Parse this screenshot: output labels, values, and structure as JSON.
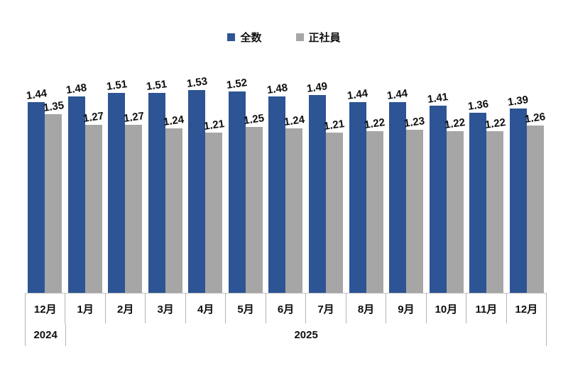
{
  "legend": {
    "items": [
      {
        "label": "全数",
        "color": "#2d5494"
      },
      {
        "label": "正社員",
        "color": "#a6a6a6"
      }
    ]
  },
  "chart_data": {
    "type": "bar",
    "title": "",
    "categories": [
      "12月",
      "1月",
      "2月",
      "3月",
      "4月",
      "5月",
      "6月",
      "7月",
      "8月",
      "9月",
      "10月",
      "11月",
      "12月"
    ],
    "series": [
      {
        "name": "全数",
        "color": "#2d5494",
        "values": [
          1.44,
          1.48,
          1.51,
          1.51,
          1.53,
          1.52,
          1.48,
          1.49,
          1.44,
          1.44,
          1.41,
          1.36,
          1.39
        ]
      },
      {
        "name": "正社員",
        "color": "#a6a6a6",
        "values": [
          1.35,
          1.27,
          1.27,
          1.24,
          1.21,
          1.25,
          1.24,
          1.21,
          1.22,
          1.23,
          1.22,
          1.22,
          1.26
        ]
      }
    ],
    "x_axis_years": [
      {
        "label": "2024",
        "span": 1
      },
      {
        "label": "2025",
        "span": 12
      }
    ],
    "ylim": [
      0,
      1.6
    ],
    "grid": false,
    "legend_position": "top",
    "data_labels": true,
    "xlabel": "",
    "ylabel": ""
  }
}
